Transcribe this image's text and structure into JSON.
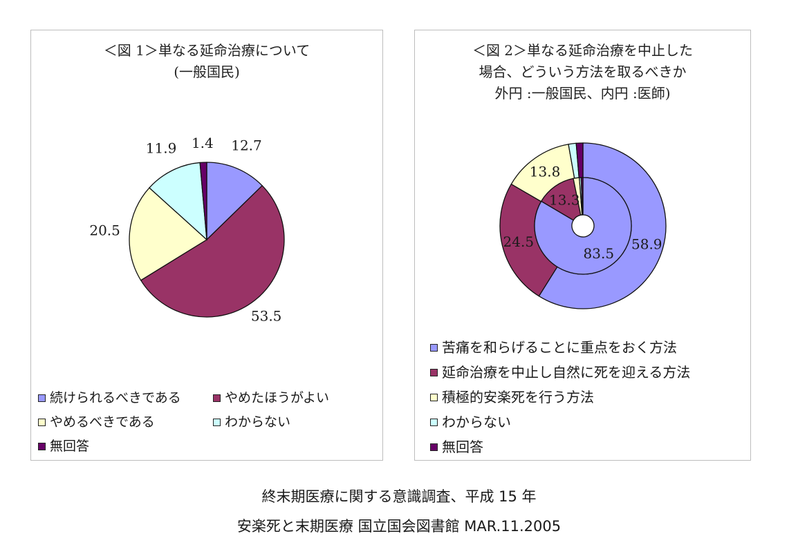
{
  "colors": {
    "blue": "#9999ff",
    "maroon": "#993366",
    "cream": "#ffffcc",
    "cyan": "#ccffff",
    "purple": "#660066"
  },
  "captions": {
    "line1": "終末期医療に関する意識調査、平成 15 年",
    "line2": "安楽死と末期医療 国立国会図書館 MAR.11.2005"
  },
  "chart_data": [
    {
      "type": "pie",
      "title_lines": [
        "＜図 1＞単なる延命治療について",
        "(一般国民)"
      ],
      "categories": [
        "続けられるべきである",
        "やめたほうがよい",
        "やめるべきである",
        "わからない",
        "無回答"
      ],
      "values": [
        12.7,
        53.5,
        20.5,
        11.9,
        1.4
      ],
      "value_labels": [
        "12.7",
        "53.5",
        "20.5",
        "11.9",
        "1.4"
      ],
      "legend_position": "bottom"
    },
    {
      "type": "pie",
      "subtype": "doughnut",
      "title_lines": [
        "＜図 2＞単なる延命治療を中止した",
        "場合、どういう方法を取るべきか",
        "外円 :一般国民、内円 :医師)"
      ],
      "categories": [
        "苦痛を和らげることに重点をおく方法",
        "延命治療を中止し自然に死を迎える方法",
        "積極的安楽死を行う方法",
        "わからない",
        "無回答"
      ],
      "series": [
        {
          "values": [
            58.9,
            24.5,
            13.8,
            1.5,
            1.3
          ],
          "value_labels": [
            "58.9",
            "24.5",
            "13.8"
          ]
        },
        {
          "values": [
            83.5,
            13.3,
            2.0,
            0.6,
            0.6
          ],
          "value_labels": [
            "83.5",
            "13.3"
          ]
        }
      ],
      "legend_position": "bottom"
    }
  ]
}
